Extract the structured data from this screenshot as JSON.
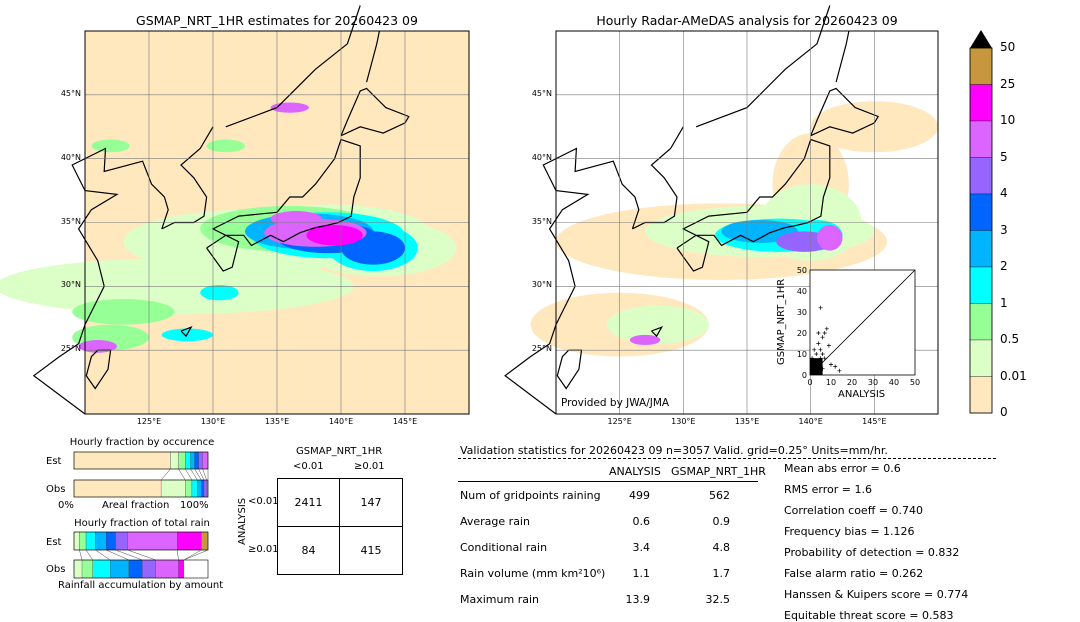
{
  "left_map": {
    "title": "GSMAP_NRT_1HR estimates for 20260423 09",
    "lat_labels": [
      "45°N",
      "40°N",
      "35°N",
      "30°N",
      "25°N"
    ],
    "lon_labels": [
      "125°E",
      "130°E",
      "135°E",
      "140°E",
      "145°E"
    ]
  },
  "right_map": {
    "title": "Hourly Radar-AMeDAS analysis for 20260423 09",
    "lat_labels": [
      "45°N",
      "40°N",
      "35°N",
      "30°N",
      "25°N"
    ],
    "lon_labels": [
      "125°E",
      "130°E",
      "135°E",
      "140°E",
      "145°E"
    ],
    "credit": "Provided by JWA/JMA"
  },
  "colorbar": {
    "labels": [
      "50",
      "25",
      "10",
      "5",
      "4",
      "3",
      "2",
      "1",
      "0.5",
      "0.01",
      "0"
    ],
    "colors": [
      "#c8963c",
      "#ff00ff",
      "#dc64ff",
      "#9664ff",
      "#0064ff",
      "#00b4ff",
      "#00ffff",
      "#96ff96",
      "#dcffc8",
      "#ffe8be"
    ]
  },
  "occurrence_panel": {
    "title": "Hourly fraction by occurence",
    "row_labels": [
      "Est",
      "Obs"
    ],
    "axis_left": "0%",
    "axis_mid": "Areal fraction",
    "axis_right": "100%"
  },
  "rain_panel": {
    "title": "Hourly fraction of total rain",
    "row_labels": [
      "Est",
      "Obs"
    ],
    "footer": "Rainfall accumulation by amount"
  },
  "contingency": {
    "title": "GSMAP_NRT_1HR",
    "col_labels": [
      "<0.01",
      "≥0.01"
    ],
    "row_axis": "ANALYSIS",
    "row_labels": [
      "<0.01",
      "≥0.01"
    ],
    "cells": [
      [
        "2411",
        "147"
      ],
      [
        "84",
        "415"
      ]
    ]
  },
  "validation": {
    "header": "Validation statistics for 20260423 09  n=3057 Valid. grid=0.25° Units=mm/hr.",
    "col_analysis": "ANALYSIS",
    "col_gsmap": "GSMAP_NRT_1HR",
    "rows": [
      {
        "label": "Num of gridpoints raining",
        "analysis": "499",
        "gsmap": "562"
      },
      {
        "label": "Average rain",
        "analysis": "0.6",
        "gsmap": "0.9"
      },
      {
        "label": "Conditional rain",
        "analysis": "3.4",
        "gsmap": "4.8"
      },
      {
        "label": "Rain volume (mm km²10⁶)",
        "analysis": "1.1",
        "gsmap": "1.7"
      },
      {
        "label": "Maximum rain",
        "analysis": "13.9",
        "gsmap": "32.5"
      }
    ],
    "scores": [
      "Mean abs error =    0.6",
      "RMS error =    1.6",
      "Correlation coeff =  0.740",
      "Frequency bias =  1.126",
      "Probability of detection =  0.832",
      "False alarm ratio =  0.262",
      "Hanssen & Kuipers score =  0.774",
      "Equitable threat score =  0.583"
    ]
  },
  "chart_data": [
    {
      "type": "heatmap",
      "title": "GSMAP_NRT_1HR estimates for 20260423 09",
      "x_ticks": [
        "125°E",
        "130°E",
        "135°E",
        "140°E",
        "145°E"
      ],
      "y_ticks": [
        "45°N",
        "40°N",
        "35°N",
        "30°N",
        "25°N"
      ],
      "xlim": [
        120,
        150
      ],
      "ylim": [
        20,
        50
      ],
      "value_bins": [
        0,
        0.01,
        0.5,
        1,
        2,
        3,
        4,
        5,
        10,
        25,
        50
      ]
    },
    {
      "type": "heatmap",
      "title": "Hourly Radar-AMeDAS analysis for 20260423 09",
      "x_ticks": [
        "125°E",
        "130°E",
        "135°E",
        "140°E",
        "145°E"
      ],
      "y_ticks": [
        "45°N",
        "40°N",
        "35°N",
        "30°N",
        "25°N"
      ],
      "xlim": [
        120,
        150
      ],
      "ylim": [
        20,
        50
      ],
      "value_bins": [
        0,
        0.01,
        0.5,
        1,
        2,
        3,
        4,
        5,
        10,
        25,
        50
      ]
    },
    {
      "type": "scatter",
      "xlabel": "ANALYSIS",
      "ylabel": "GSMAP_NRT_1HR",
      "xlim": [
        0,
        50
      ],
      "ylim": [
        0,
        50
      ],
      "ticks": [
        "0",
        "10",
        "20",
        "30",
        "40",
        "50"
      ],
      "points": [
        [
          1,
          2
        ],
        [
          2,
          1
        ],
        [
          3,
          5
        ],
        [
          4,
          2
        ],
        [
          5,
          8
        ],
        [
          6,
          3
        ],
        [
          2,
          6
        ],
        [
          3,
          10
        ],
        [
          4,
          15
        ],
        [
          5,
          12
        ],
        [
          6,
          18
        ],
        [
          7,
          20
        ],
        [
          8,
          22
        ],
        [
          5,
          32
        ],
        [
          9,
          14
        ],
        [
          10,
          5
        ],
        [
          12,
          4
        ],
        [
          14,
          2
        ],
        [
          3,
          1
        ],
        [
          1,
          4
        ],
        [
          2,
          12
        ],
        [
          4,
          20
        ],
        [
          6,
          10
        ],
        [
          7,
          8
        ],
        [
          1,
          8
        ]
      ]
    },
    {
      "type": "bar",
      "title": "Hourly fraction by occurence",
      "categories": [
        "Est",
        "Obs"
      ],
      "series": [
        {
          "values": [
            0.72,
            0.65
          ]
        },
        {
          "values": [
            0.06,
            0.18
          ]
        },
        {
          "values": [
            0.05,
            0.05
          ]
        },
        {
          "values": [
            0.04,
            0.04
          ]
        },
        {
          "values": [
            0.03,
            0.03
          ]
        },
        {
          "values": [
            0.03,
            0.02
          ]
        },
        {
          "values": [
            0.03,
            0.02
          ]
        },
        {
          "values": [
            0.04,
            0.01
          ]
        }
      ]
    },
    {
      "type": "bar",
      "title": "Hourly fraction of total rain",
      "categories": [
        "Est",
        "Obs"
      ],
      "series": [
        {
          "values": [
            0.04,
            0.06
          ]
        },
        {
          "values": [
            0.05,
            0.08
          ]
        },
        {
          "values": [
            0.07,
            0.13
          ]
        },
        {
          "values": [
            0.08,
            0.14
          ]
        },
        {
          "values": [
            0.07,
            0.1
          ]
        },
        {
          "values": [
            0.09,
            0.1
          ]
        },
        {
          "values": [
            0.37,
            0.17
          ]
        },
        {
          "values": [
            0.18,
            0.04
          ]
        },
        {
          "values": [
            0.05,
            0.0
          ]
        }
      ]
    }
  ]
}
